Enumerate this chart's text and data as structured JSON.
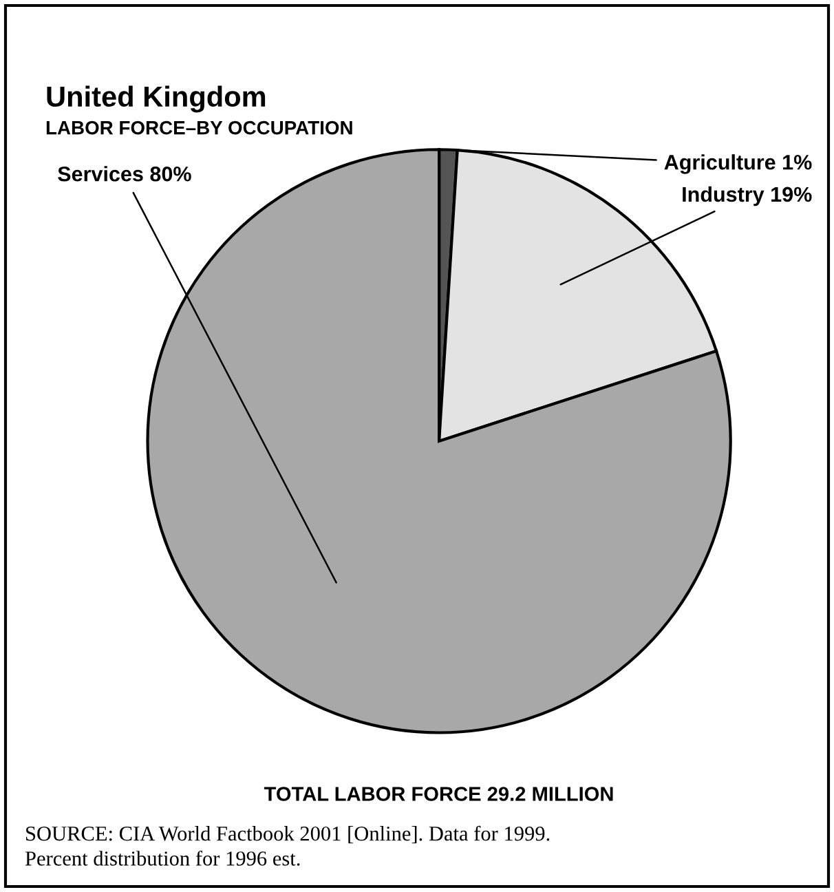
{
  "chart_data": {
    "type": "pie",
    "title": "United Kingdom",
    "subtitle": "LABOR FORCE–BY OCCUPATION",
    "categories": [
      "Agriculture 1%",
      "Industry 19%",
      "Services 80%"
    ],
    "values": [
      1,
      19,
      80
    ],
    "colors": [
      "#555555",
      "#e3e3e3",
      "#a8a8a8"
    ],
    "annotations": [
      "TOTAL LABOR FORCE 29.2 MILLION",
      "SOURCE: CIA World Factbook 2001 [Online]. Data for 1999.\nPercent distribution for 1996 est."
    ],
    "legend": false
  }
}
